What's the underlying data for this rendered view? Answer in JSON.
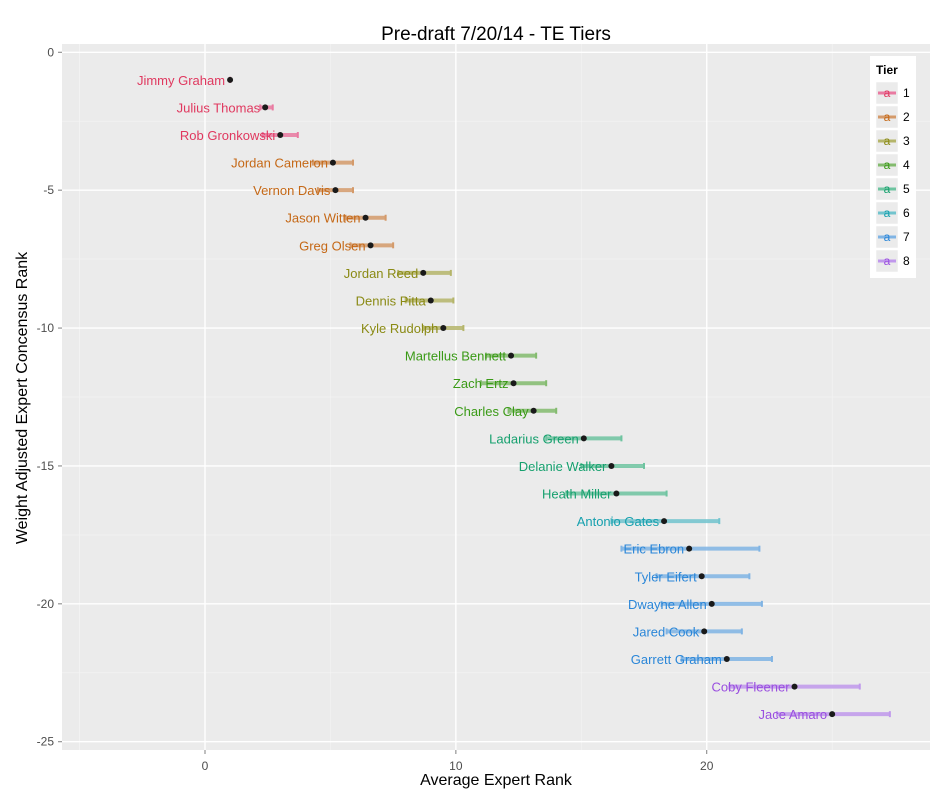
{
  "chart_data": {
    "type": "errorbar",
    "title": "Pre-draft 7/20/14 - TE Tiers",
    "xlabel": "Average Expert Rank",
    "ylabel": "Weight Adjusted Expert Concensus Rank",
    "xlim": [
      -5.7,
      28.9
    ],
    "ylim": [
      -25.3,
      0.3
    ],
    "x_ticks": [
      0,
      10,
      20
    ],
    "y_ticks": [
      0,
      -5,
      -10,
      -15,
      -20,
      -25
    ],
    "grid": true,
    "legend": {
      "title": "Tier",
      "position": "top-right",
      "key_glyph": "a",
      "entries": [
        {
          "label": "1",
          "color": "#F8766D"
        },
        {
          "label": "2",
          "color": "#CD9600"
        },
        {
          "label": "3",
          "color": "#7CAE00"
        },
        {
          "label": "4",
          "color": "#00BE67"
        },
        {
          "label": "5",
          "color": "#00BFC4"
        },
        {
          "label": "6",
          "color": "#00A9FF"
        },
        {
          "label": "7",
          "color": "#C77CFF"
        },
        {
          "label": "8",
          "color": "#FF61CC"
        }
      ]
    },
    "tier_colors": {
      "1": {
        "text": "#e0385f",
        "bar": "#e97aa1"
      },
      "2": {
        "text": "#c56816",
        "bar": "#d49a6a"
      },
      "3": {
        "text": "#8a8a14",
        "bar": "#b5b56a"
      },
      "4": {
        "text": "#3a9a16",
        "bar": "#83bb6e"
      },
      "5": {
        "text": "#16a06e",
        "bar": "#6ec4a0"
      },
      "6": {
        "text": "#16a0ae",
        "bar": "#72c4ce"
      },
      "7": {
        "text": "#2a86d8",
        "bar": "#80b4e4"
      },
      "8": {
        "text": "#9a4ee0",
        "bar": "#c098ec"
      }
    },
    "points": [
      {
        "name": "Jimmy Graham",
        "tier": 1,
        "x": 1.0,
        "y": -1,
        "lo": 1.0,
        "hi": 1.0
      },
      {
        "name": "Julius Thomas",
        "tier": 1,
        "x": 2.4,
        "y": -2,
        "lo": 2.2,
        "hi": 2.7
      },
      {
        "name": "Rob Gronkowski",
        "tier": 1,
        "x": 3.0,
        "y": -3,
        "lo": 2.3,
        "hi": 3.7
      },
      {
        "name": "Jordan Cameron",
        "tier": 2,
        "x": 5.1,
        "y": -4,
        "lo": 4.3,
        "hi": 5.9
      },
      {
        "name": "Vernon Davis",
        "tier": 2,
        "x": 5.2,
        "y": -5,
        "lo": 4.5,
        "hi": 5.9
      },
      {
        "name": "Jason Witten",
        "tier": 2,
        "x": 6.4,
        "y": -6,
        "lo": 5.6,
        "hi": 7.2
      },
      {
        "name": "Greg Olsen",
        "tier": 2,
        "x": 6.6,
        "y": -7,
        "lo": 5.8,
        "hi": 7.5
      },
      {
        "name": "Jordan Reed",
        "tier": 3,
        "x": 8.7,
        "y": -8,
        "lo": 7.7,
        "hi": 9.8
      },
      {
        "name": "Dennis Pitta",
        "tier": 3,
        "x": 9.0,
        "y": -9,
        "lo": 8.0,
        "hi": 9.9
      },
      {
        "name": "Kyle Rudolph",
        "tier": 3,
        "x": 9.5,
        "y": -10,
        "lo": 8.7,
        "hi": 10.3
      },
      {
        "name": "Martellus Bennett",
        "tier": 4,
        "x": 12.2,
        "y": -11,
        "lo": 11.2,
        "hi": 13.2
      },
      {
        "name": "Zach Ertz",
        "tier": 4,
        "x": 12.3,
        "y": -12,
        "lo": 11.0,
        "hi": 13.6
      },
      {
        "name": "Charles Clay",
        "tier": 4,
        "x": 13.1,
        "y": -13,
        "lo": 12.1,
        "hi": 14.0
      },
      {
        "name": "Ladarius Green",
        "tier": 5,
        "x": 15.1,
        "y": -14,
        "lo": 13.6,
        "hi": 16.6
      },
      {
        "name": "Delanie Walker",
        "tier": 5,
        "x": 16.2,
        "y": -15,
        "lo": 15.0,
        "hi": 17.5
      },
      {
        "name": "Heath Miller",
        "tier": 5,
        "x": 16.4,
        "y": -16,
        "lo": 14.4,
        "hi": 18.4
      },
      {
        "name": "Antonio Gates",
        "tier": 6,
        "x": 18.3,
        "y": -17,
        "lo": 16.2,
        "hi": 20.5
      },
      {
        "name": "Eric Ebron",
        "tier": 7,
        "x": 19.3,
        "y": -18,
        "lo": 16.6,
        "hi": 22.1
      },
      {
        "name": "Tyler Eifert",
        "tier": 7,
        "x": 19.8,
        "y": -19,
        "lo": 18.0,
        "hi": 21.7
      },
      {
        "name": "Dwayne Allen",
        "tier": 7,
        "x": 20.2,
        "y": -20,
        "lo": 18.2,
        "hi": 22.2
      },
      {
        "name": "Jared Cook",
        "tier": 7,
        "x": 19.9,
        "y": -21,
        "lo": 18.4,
        "hi": 21.4
      },
      {
        "name": "Garrett Graham",
        "tier": 7,
        "x": 20.8,
        "y": -22,
        "lo": 19.0,
        "hi": 22.6
      },
      {
        "name": "Coby Fleener",
        "tier": 8,
        "x": 23.5,
        "y": -23,
        "lo": 20.9,
        "hi": 26.1
      },
      {
        "name": "Jace Amaro",
        "tier": 8,
        "x": 25.0,
        "y": -24,
        "lo": 22.8,
        "hi": 27.3
      }
    ]
  }
}
